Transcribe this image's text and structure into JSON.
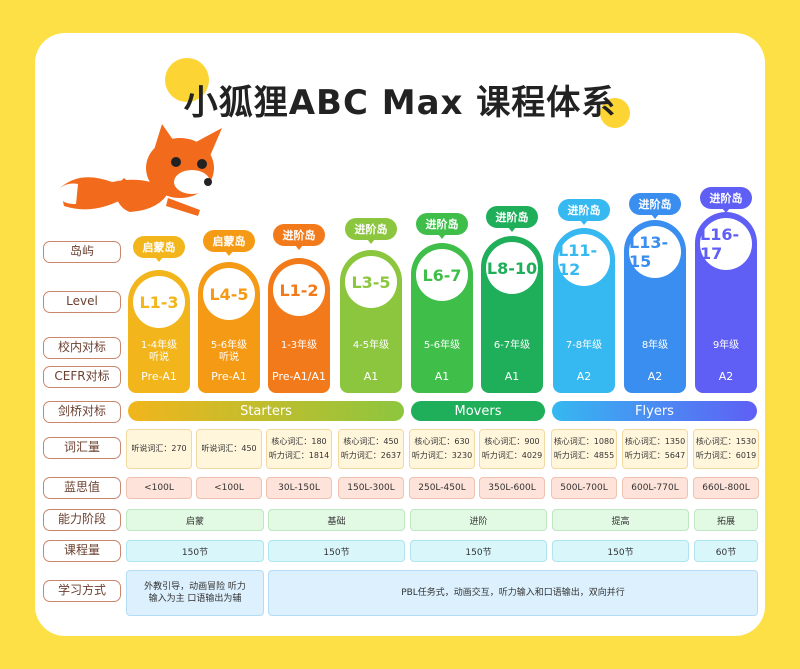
{
  "title": "小狐狸ABC Max 课程体系",
  "row_labels": {
    "island": "岛屿",
    "level": "Level",
    "school": "校内对标",
    "cefr": "CEFR对标",
    "cambridge": "剑桥对标",
    "vocab": "词汇量",
    "lexile": "蓝思值",
    "stage": "能力阶段",
    "hours": "课程量",
    "method": "学习方式"
  },
  "levels": [
    {
      "island": "启蒙岛",
      "level": "L1-3",
      "school": "1-4年级 听说",
      "cefr": "Pre-A1",
      "vocab": "听说词汇：270",
      "lexile": "<100L"
    },
    {
      "island": "启蒙岛",
      "level": "L4-5",
      "school": "5-6年级 听说",
      "cefr": "Pre-A1",
      "vocab": "听说词汇：450",
      "lexile": "<100L"
    },
    {
      "island": "进阶岛",
      "level": "L1-2",
      "school": "1-3年级",
      "cefr": "Pre-A1/A1",
      "vocab_core": "核心词汇：180",
      "vocab_listen": "听力词汇：1814",
      "lexile": "30L-150L"
    },
    {
      "island": "进阶岛",
      "level": "L3-5",
      "school": "4-5年级",
      "cefr": "A1",
      "vocab_core": "核心词汇：450",
      "vocab_listen": "听力词汇：2637",
      "lexile": "150L-300L"
    },
    {
      "island": "进阶岛",
      "level": "L6-7",
      "school": "5-6年级",
      "cefr": "A1",
      "vocab_core": "核心词汇：630",
      "vocab_listen": "听力词汇：3230",
      "lexile": "250L-450L"
    },
    {
      "island": "进阶岛",
      "level": "L8-10",
      "school": "6-7年级",
      "cefr": "A1",
      "vocab_core": "核心词汇：900",
      "vocab_listen": "听力词汇：4029",
      "lexile": "350L-600L"
    },
    {
      "island": "进阶岛",
      "level": "L11-12",
      "school": "7-8年级",
      "cefr": "A2",
      "vocab_core": "核心词汇：1080",
      "vocab_listen": "听力词汇：4855",
      "lexile": "500L-700L"
    },
    {
      "island": "进阶岛",
      "level": "L13-15",
      "school": "8年级",
      "cefr": "A2",
      "vocab_core": "核心词汇：1350",
      "vocab_listen": "听力词汇：5647",
      "lexile": "600L-770L"
    },
    {
      "island": "进阶岛",
      "level": "L16-17",
      "school": "9年级",
      "cefr": "A2",
      "vocab_core": "核心词汇：1530",
      "vocab_listen": "听力词汇：6019",
      "lexile": "660L-800L"
    }
  ],
  "cambridge": [
    "Starters",
    "Movers",
    "Flyers"
  ],
  "stages": [
    "启蒙",
    "基础",
    "进阶",
    "提高",
    "拓展"
  ],
  "hours": [
    "150节",
    "150节",
    "150节",
    "150节",
    "60节"
  ],
  "methods": [
    "外教引导，动画冒险 听力输入为主 口语输出为辅",
    "PBL任务式，动画交互，听力输入和口语输出，双向并行"
  ],
  "colors": [
    "#f2b51c",
    "#f59a14",
    "#f27a1a",
    "#8cc63f",
    "#3fbf4a",
    "#1fae5a",
    "#36b8f0",
    "#3a8ef0",
    "#5f5ff5"
  ]
}
